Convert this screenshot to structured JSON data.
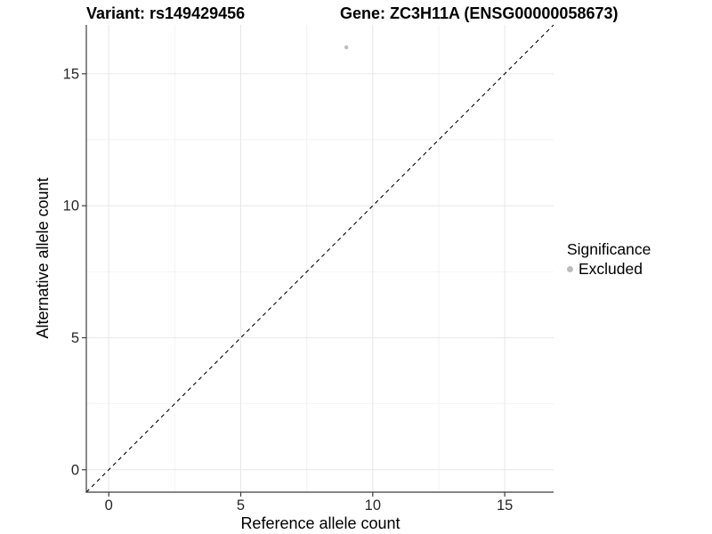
{
  "header": {
    "variant_title": "Variant: rs149429456",
    "gene_title": "Gene: ZC3H11A (ENSG00000058673)"
  },
  "chart_data": {
    "type": "scatter",
    "xlabel": "Reference allele count",
    "ylabel": "Alternative allele count",
    "xlim": [
      -0.85,
      16.85
    ],
    "ylim": [
      -0.85,
      16.85
    ],
    "x_ticks": [
      0,
      5,
      10,
      15
    ],
    "y_ticks": [
      0,
      5,
      10,
      15
    ],
    "x_minor": [
      2.5,
      7.5,
      12.5
    ],
    "y_minor": [
      2.5,
      7.5,
      12.5
    ],
    "grid": true,
    "legend_position": "right",
    "legend": {
      "title": "Significance",
      "items": [
        {
          "label": "Excluded",
          "color": "#bdbdbd"
        }
      ]
    },
    "identity_line": {
      "slope": 1,
      "intercept": 0,
      "style": "dashed",
      "color": "#000000"
    },
    "series": [
      {
        "name": "Excluded",
        "color": "#bdbdbd",
        "point_radius": 2.2,
        "points": [
          [
            9,
            16
          ]
        ]
      }
    ],
    "colors": {
      "background": "#ffffff",
      "grid_major": "#e7e7e7",
      "grid_minor": "#f2f2f2",
      "axis_line": "#3c3c3c",
      "tick_label": "#262626",
      "axis_title": "#000000"
    }
  }
}
